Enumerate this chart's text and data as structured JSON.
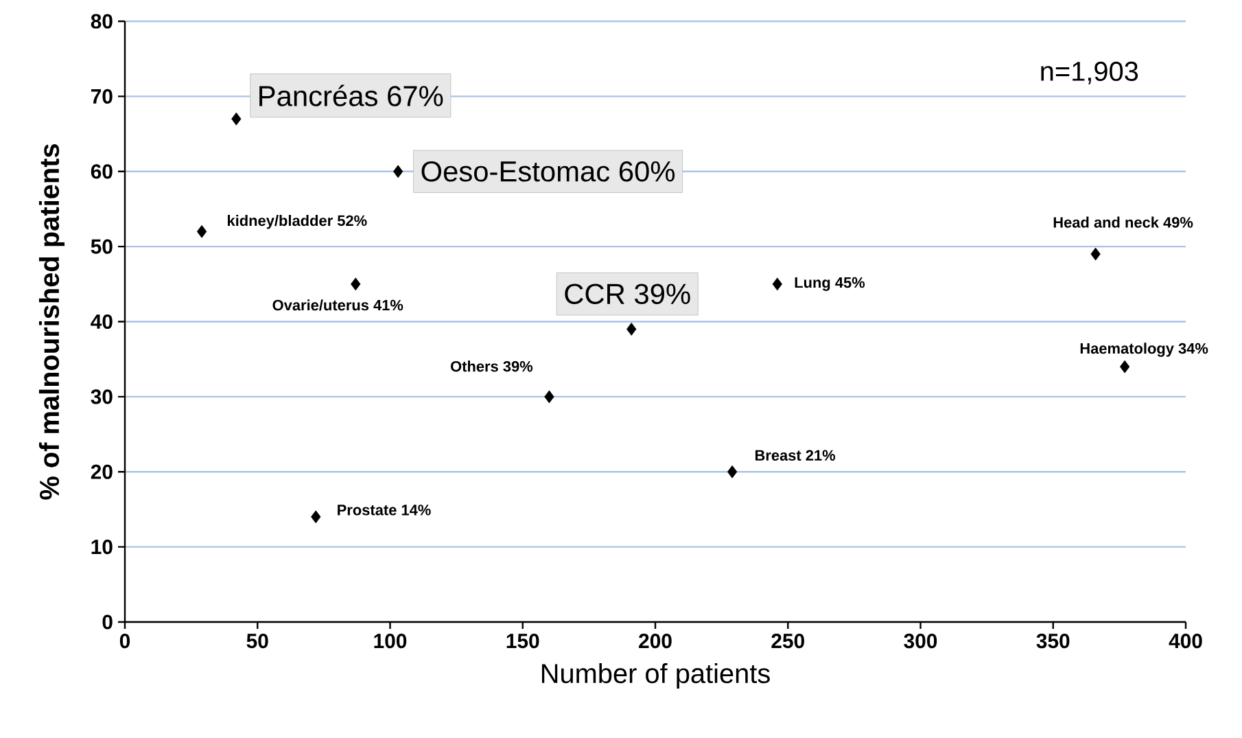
{
  "chart_data": {
    "type": "scatter",
    "xlabel": "Number of patients",
    "ylabel": "% of malnourished patients",
    "x": [
      42,
      103,
      29,
      87,
      191,
      246,
      366,
      377,
      160,
      229,
      72
    ],
    "values": [
      67,
      60,
      52,
      45,
      39,
      45,
      49,
      34,
      30,
      20,
      14
    ],
    "color": "#000000",
    "marker": "diamond",
    "grid": "y",
    "xlim": [
      0,
      400
    ],
    "ylim": [
      0,
      80
    ],
    "xticks": [
      0,
      50,
      100,
      150,
      200,
      250,
      300,
      350,
      400
    ],
    "yticks": [
      0,
      10,
      20,
      30,
      40,
      50,
      60,
      70,
      80
    ],
    "annotations": [
      {
        "text": "Pancréas 67%",
        "x": 42,
        "y": 67
      },
      {
        "text": "Oeso-Estomac 60%",
        "x": 103,
        "y": 60
      },
      {
        "text": "kidney/bladder 52%",
        "x": 29,
        "y": 52
      },
      {
        "text": "Ovarie/uterus 41%",
        "x": 87,
        "y": 45
      },
      {
        "text": "CCR 39%",
        "x": 191,
        "y": 39
      },
      {
        "text": "Lung 45%",
        "x": 246,
        "y": 45
      },
      {
        "text": "Head and neck 49%",
        "x": 366,
        "y": 49
      },
      {
        "text": "Haematology 34%",
        "x": 377,
        "y": 34
      },
      {
        "text": "Others 39%",
        "x": 160,
        "y": 30
      },
      {
        "text": "Breast 21%",
        "x": 229,
        "y": 20
      },
      {
        "text": "Prostate 14%",
        "x": 72,
        "y": 14
      },
      "n=1,903"
    ]
  }
}
